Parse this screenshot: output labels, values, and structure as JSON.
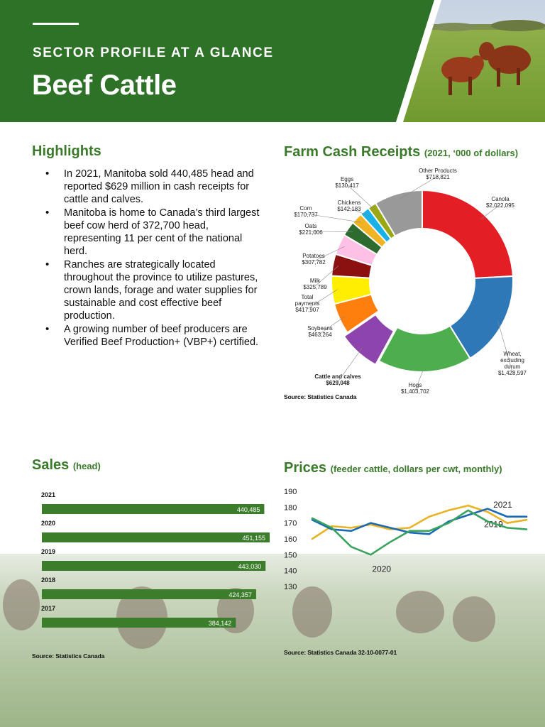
{
  "header": {
    "eyebrow": "SECTOR PROFILE AT A GLANCE",
    "title": "Beef Cattle",
    "photo": "cattle-in-field-photo"
  },
  "highlights": {
    "title": "Highlights",
    "items": [
      "In 2021, Manitoba sold 440,485 head and reported $629 million in cash receipts for cattle and calves.",
      "Manitoba is home to Canada’s third largest beef cow herd of 372,700 head, representing 11 per cent of the national herd.",
      "Ranches are strategically located throughout the province to utilize pastures, crown lands, forage and water supplies for sustainable and cost effective beef production.",
      "A growing number of beef producers are Verified Beef Production+ (VBP+) certified."
    ]
  },
  "receipts": {
    "title": "Farm Cash Receipts",
    "subtitle": "(2021, ‘000 of dollars)",
    "source": "Source: Statistics Canada"
  },
  "sales": {
    "title": "Sales",
    "subtitle": "(head)",
    "source": "Source: Statistics Canada"
  },
  "prices": {
    "title": "Prices",
    "subtitle": "(feeder cattle, dollars per cwt, monthly)",
    "source": "Source: Statistics Canada 32-10-0077-01"
  },
  "chart_data": [
    {
      "type": "pie",
      "title": "Farm Cash Receipts",
      "slices": [
        {
          "label": "Canola",
          "value": "$2,022,095",
          "amount": 2022095,
          "color": "#e31e24"
        },
        {
          "label": "Wheat, excluding durum",
          "value": "$1,428,597",
          "amount": 1428597,
          "color": "#2f78b7"
        },
        {
          "label": "Hogs",
          "value": "$1,403,702",
          "amount": 1403702,
          "color": "#4cae4c"
        },
        {
          "label": "Cattle and calves",
          "value": "$629,048",
          "amount": 629048,
          "color": "#8e44ad"
        },
        {
          "label": "Soybeans",
          "value": "$463,264",
          "amount": 463264,
          "color": "#ff7f0e"
        },
        {
          "label": "Total payments",
          "value": "$417,907",
          "amount": 417907,
          "color": "#ffee00"
        },
        {
          "label": "Milk",
          "value": "$325,789",
          "amount": 325789,
          "color": "#8b1010"
        },
        {
          "label": "Potatoes",
          "value": "$307,782",
          "amount": 307782,
          "color": "#ffc0e6"
        },
        {
          "label": "Oats",
          "value": "$221,006",
          "amount": 221006,
          "color": "#2e6b2e"
        },
        {
          "label": "Corn",
          "value": "$170,737",
          "amount": 170737,
          "color": "#f0b323"
        },
        {
          "label": "Chickens",
          "value": "$142,183",
          "amount": 142183,
          "color": "#17b1e8"
        },
        {
          "label": "Eggs",
          "value": "$130,417",
          "amount": 130417,
          "color": "#9aa814"
        },
        {
          "label": "Other Products",
          "value": "$718,821",
          "amount": 718821,
          "color": "#999999"
        }
      ]
    },
    {
      "type": "bar",
      "title": "Sales",
      "categories": [
        "2021",
        "2020",
        "2019",
        "2018",
        "2017"
      ],
      "values": [
        440485,
        451155,
        443030,
        424357,
        384142
      ],
      "value_labels": [
        "440,485",
        "451,155",
        "443,030",
        "424,357",
        "384,142"
      ],
      "xlim": [
        0,
        451155
      ],
      "color": "#3b7d2a"
    },
    {
      "type": "line",
      "title": "Prices",
      "x": [
        1,
        2,
        3,
        4,
        5,
        6,
        7,
        8,
        9,
        10,
        11,
        12
      ],
      "ylim": [
        130,
        190
      ],
      "yticks": [
        130,
        140,
        150,
        160,
        170,
        180,
        190
      ],
      "series": [
        {
          "name": "2021",
          "color": "#e8b325",
          "values": [
            160,
            168,
            167,
            169,
            166,
            167,
            174,
            178,
            181,
            177,
            170,
            172
          ]
        },
        {
          "name": "2019",
          "color": "#1a6bb5",
          "values": [
            172,
            166,
            165,
            170,
            167,
            164,
            163,
            171,
            175,
            179,
            174,
            174
          ]
        },
        {
          "name": "2020",
          "color": "#3aa35e",
          "values": [
            173,
            167,
            155,
            150,
            158,
            165,
            165,
            170,
            178,
            171,
            167,
            166
          ]
        }
      ],
      "colors": {
        "axis_text": "#222222"
      }
    }
  ]
}
